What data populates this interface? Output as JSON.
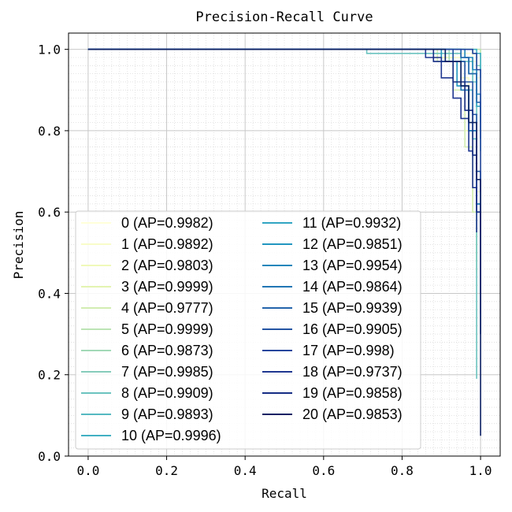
{
  "chart_data": {
    "type": "line",
    "title": "Precision-Recall Curve",
    "xlabel": "Recall",
    "ylabel": "Precision",
    "xlim": [
      -0.05,
      1.05
    ],
    "ylim": [
      0.0,
      1.04
    ],
    "xticks": [
      "0.0",
      "0.2",
      "0.4",
      "0.6",
      "0.8",
      "1.0"
    ],
    "yticks": [
      "0.0",
      "0.2",
      "0.4",
      "0.6",
      "0.8",
      "1.0"
    ],
    "grid": "major solid and minor dotted",
    "legend_position": "center-left",
    "legend_columns": 2,
    "series": [
      {
        "name": "0 (AP=0.9982)",
        "color": "#ffffd9",
        "points": [
          [
            0,
            1
          ],
          [
            0.9,
            1
          ],
          [
            0.95,
            0.99
          ],
          [
            0.98,
            0.97
          ],
          [
            0.99,
            0.93
          ],
          [
            1.0,
            0.7
          ],
          [
            1.0,
            0.55
          ]
        ]
      },
      {
        "name": "1 (AP=0.9892)",
        "color": "#f8fcc9",
        "points": [
          [
            0,
            1
          ],
          [
            0.82,
            1
          ],
          [
            0.9,
            0.98
          ],
          [
            0.95,
            0.93
          ],
          [
            0.97,
            0.82
          ],
          [
            0.99,
            0.65
          ],
          [
            1.0,
            0.52
          ]
        ]
      },
      {
        "name": "2 (AP=0.9803)",
        "color": "#f0f9b9",
        "points": [
          [
            0,
            1
          ],
          [
            0.8,
            1
          ],
          [
            0.88,
            0.98
          ],
          [
            0.93,
            0.92
          ],
          [
            0.96,
            0.8
          ],
          [
            0.98,
            0.6
          ],
          [
            0.99,
            0.45
          ]
        ]
      },
      {
        "name": "3 (AP=0.9999)",
        "color": "#e3f4b1",
        "points": [
          [
            0,
            1
          ],
          [
            0.99,
            1
          ],
          [
            1.0,
            0.99
          ],
          [
            1.0,
            0.95
          ]
        ]
      },
      {
        "name": "4 (AP=0.9777)",
        "color": "#d2edb2",
        "points": [
          [
            0,
            1
          ],
          [
            0.8,
            1
          ],
          [
            0.89,
            0.97
          ],
          [
            0.93,
            0.9
          ],
          [
            0.96,
            0.76
          ],
          [
            0.98,
            0.6
          ],
          [
            0.99,
            0.48
          ]
        ]
      },
      {
        "name": "5 (AP=0.9999)",
        "color": "#bce4b5",
        "points": [
          [
            0,
            1
          ],
          [
            0.99,
            1
          ],
          [
            1.0,
            0.99
          ],
          [
            1.0,
            0.96
          ]
        ]
      },
      {
        "name": "6 (AP=0.9873)",
        "color": "#a2d9b7",
        "points": [
          [
            0,
            1
          ],
          [
            0.85,
            1
          ],
          [
            0.92,
            0.97
          ],
          [
            0.95,
            0.91
          ],
          [
            0.97,
            0.82
          ],
          [
            0.99,
            0.7
          ],
          [
            1.0,
            0.6
          ]
        ]
      },
      {
        "name": "7 (AP=0.9985)",
        "color": "#86ccbb",
        "points": [
          [
            0,
            1
          ],
          [
            0.95,
            1
          ],
          [
            0.98,
            0.99
          ],
          [
            0.99,
            0.96
          ],
          [
            1.0,
            0.9
          ]
        ]
      },
      {
        "name": "8 (AP=0.9909)",
        "color": "#6bc3bf",
        "points": [
          [
            0,
            1
          ],
          [
            0.71,
            0.99
          ],
          [
            0.9,
            0.99
          ],
          [
            0.95,
            0.97
          ],
          [
            0.98,
            0.92
          ],
          [
            0.99,
            0.8
          ],
          [
            0.99,
            0.19
          ]
        ]
      },
      {
        "name": "9 (AP=0.9893)",
        "color": "#55b9c1",
        "points": [
          [
            0,
            1
          ],
          [
            0.86,
            1
          ],
          [
            0.93,
            0.97
          ],
          [
            0.96,
            0.9
          ],
          [
            0.98,
            0.78
          ],
          [
            0.99,
            0.62
          ],
          [
            1.0,
            0.5
          ]
        ]
      },
      {
        "name": "10 (AP=0.9996)",
        "color": "#41b0c3",
        "points": [
          [
            0,
            1
          ],
          [
            0.98,
            1
          ],
          [
            0.99,
            0.99
          ],
          [
            1.0,
            0.97
          ],
          [
            1.0,
            0.93
          ]
        ]
      },
      {
        "name": "11 (AP=0.9932)",
        "color": "#31a5c2",
        "points": [
          [
            0,
            1
          ],
          [
            0.9,
            1
          ],
          [
            0.95,
            0.98
          ],
          [
            0.97,
            0.94
          ],
          [
            0.99,
            0.86
          ],
          [
            1.0,
            0.75
          ]
        ]
      },
      {
        "name": "12 (AP=0.9851)",
        "color": "#2296c0",
        "points": [
          [
            0,
            1
          ],
          [
            0.82,
            1
          ],
          [
            0.9,
            0.97
          ],
          [
            0.94,
            0.91
          ],
          [
            0.97,
            0.8
          ],
          [
            0.99,
            0.6
          ],
          [
            1.0,
            0.35
          ]
        ]
      },
      {
        "name": "13 (AP=0.9954)",
        "color": "#1d86bb",
        "points": [
          [
            0,
            1
          ],
          [
            0.92,
            1
          ],
          [
            0.96,
            0.98
          ],
          [
            0.98,
            0.95
          ],
          [
            0.99,
            0.89
          ],
          [
            1.0,
            0.82
          ]
        ]
      },
      {
        "name": "14 (AP=0.9864)",
        "color": "#2075b4",
        "points": [
          [
            0,
            1
          ],
          [
            0.84,
            1
          ],
          [
            0.91,
            0.97
          ],
          [
            0.95,
            0.9
          ],
          [
            0.97,
            0.8
          ],
          [
            0.99,
            0.62
          ],
          [
            1.0,
            0.4
          ]
        ]
      },
      {
        "name": "15 (AP=0.9939)",
        "color": "#2364ab",
        "points": [
          [
            0,
            1
          ],
          [
            0.9,
            1
          ],
          [
            0.95,
            0.98
          ],
          [
            0.97,
            0.94
          ],
          [
            0.99,
            0.87
          ],
          [
            1.0,
            0.78
          ]
        ]
      },
      {
        "name": "16 (AP=0.9905)",
        "color": "#2454a3",
        "points": [
          [
            0,
            1
          ],
          [
            0.87,
            1
          ],
          [
            0.93,
            0.97
          ],
          [
            0.96,
            0.92
          ],
          [
            0.98,
            0.84
          ],
          [
            0.99,
            0.7
          ],
          [
            1.0,
            0.55
          ]
        ]
      },
      {
        "name": "17 (AP=0.998)",
        "color": "#23459c",
        "points": [
          [
            0,
            1
          ],
          [
            0.95,
            1
          ],
          [
            0.98,
            0.99
          ],
          [
            0.99,
            0.95
          ],
          [
            1.0,
            0.88
          ],
          [
            1.0,
            0.65
          ]
        ]
      },
      {
        "name": "18 (AP=0.9737)",
        "color": "#1f3790",
        "points": [
          [
            0,
            1
          ],
          [
            0.76,
            1
          ],
          [
            0.86,
            0.98
          ],
          [
            0.9,
            0.93
          ],
          [
            0.93,
            0.88
          ],
          [
            0.95,
            0.83
          ],
          [
            0.97,
            0.75
          ],
          [
            0.98,
            0.66
          ],
          [
            0.99,
            0.55
          ]
        ]
      },
      {
        "name": "19 (AP=0.9858)",
        "color": "#152c84",
        "points": [
          [
            0,
            1
          ],
          [
            0.8,
            1
          ],
          [
            0.88,
            0.97
          ],
          [
            0.93,
            0.92
          ],
          [
            0.96,
            0.85
          ],
          [
            0.98,
            0.74
          ],
          [
            0.99,
            0.6
          ],
          [
            1.0,
            0.3
          ]
        ]
      },
      {
        "name": "20 (AP=0.9853)",
        "color": "#0d2163",
        "points": [
          [
            0,
            1
          ],
          [
            0.84,
            1
          ],
          [
            0.91,
            0.97
          ],
          [
            0.95,
            0.91
          ],
          [
            0.97,
            0.82
          ],
          [
            0.99,
            0.68
          ],
          [
            1.0,
            0.4
          ],
          [
            1.0,
            0.05
          ]
        ]
      }
    ]
  }
}
